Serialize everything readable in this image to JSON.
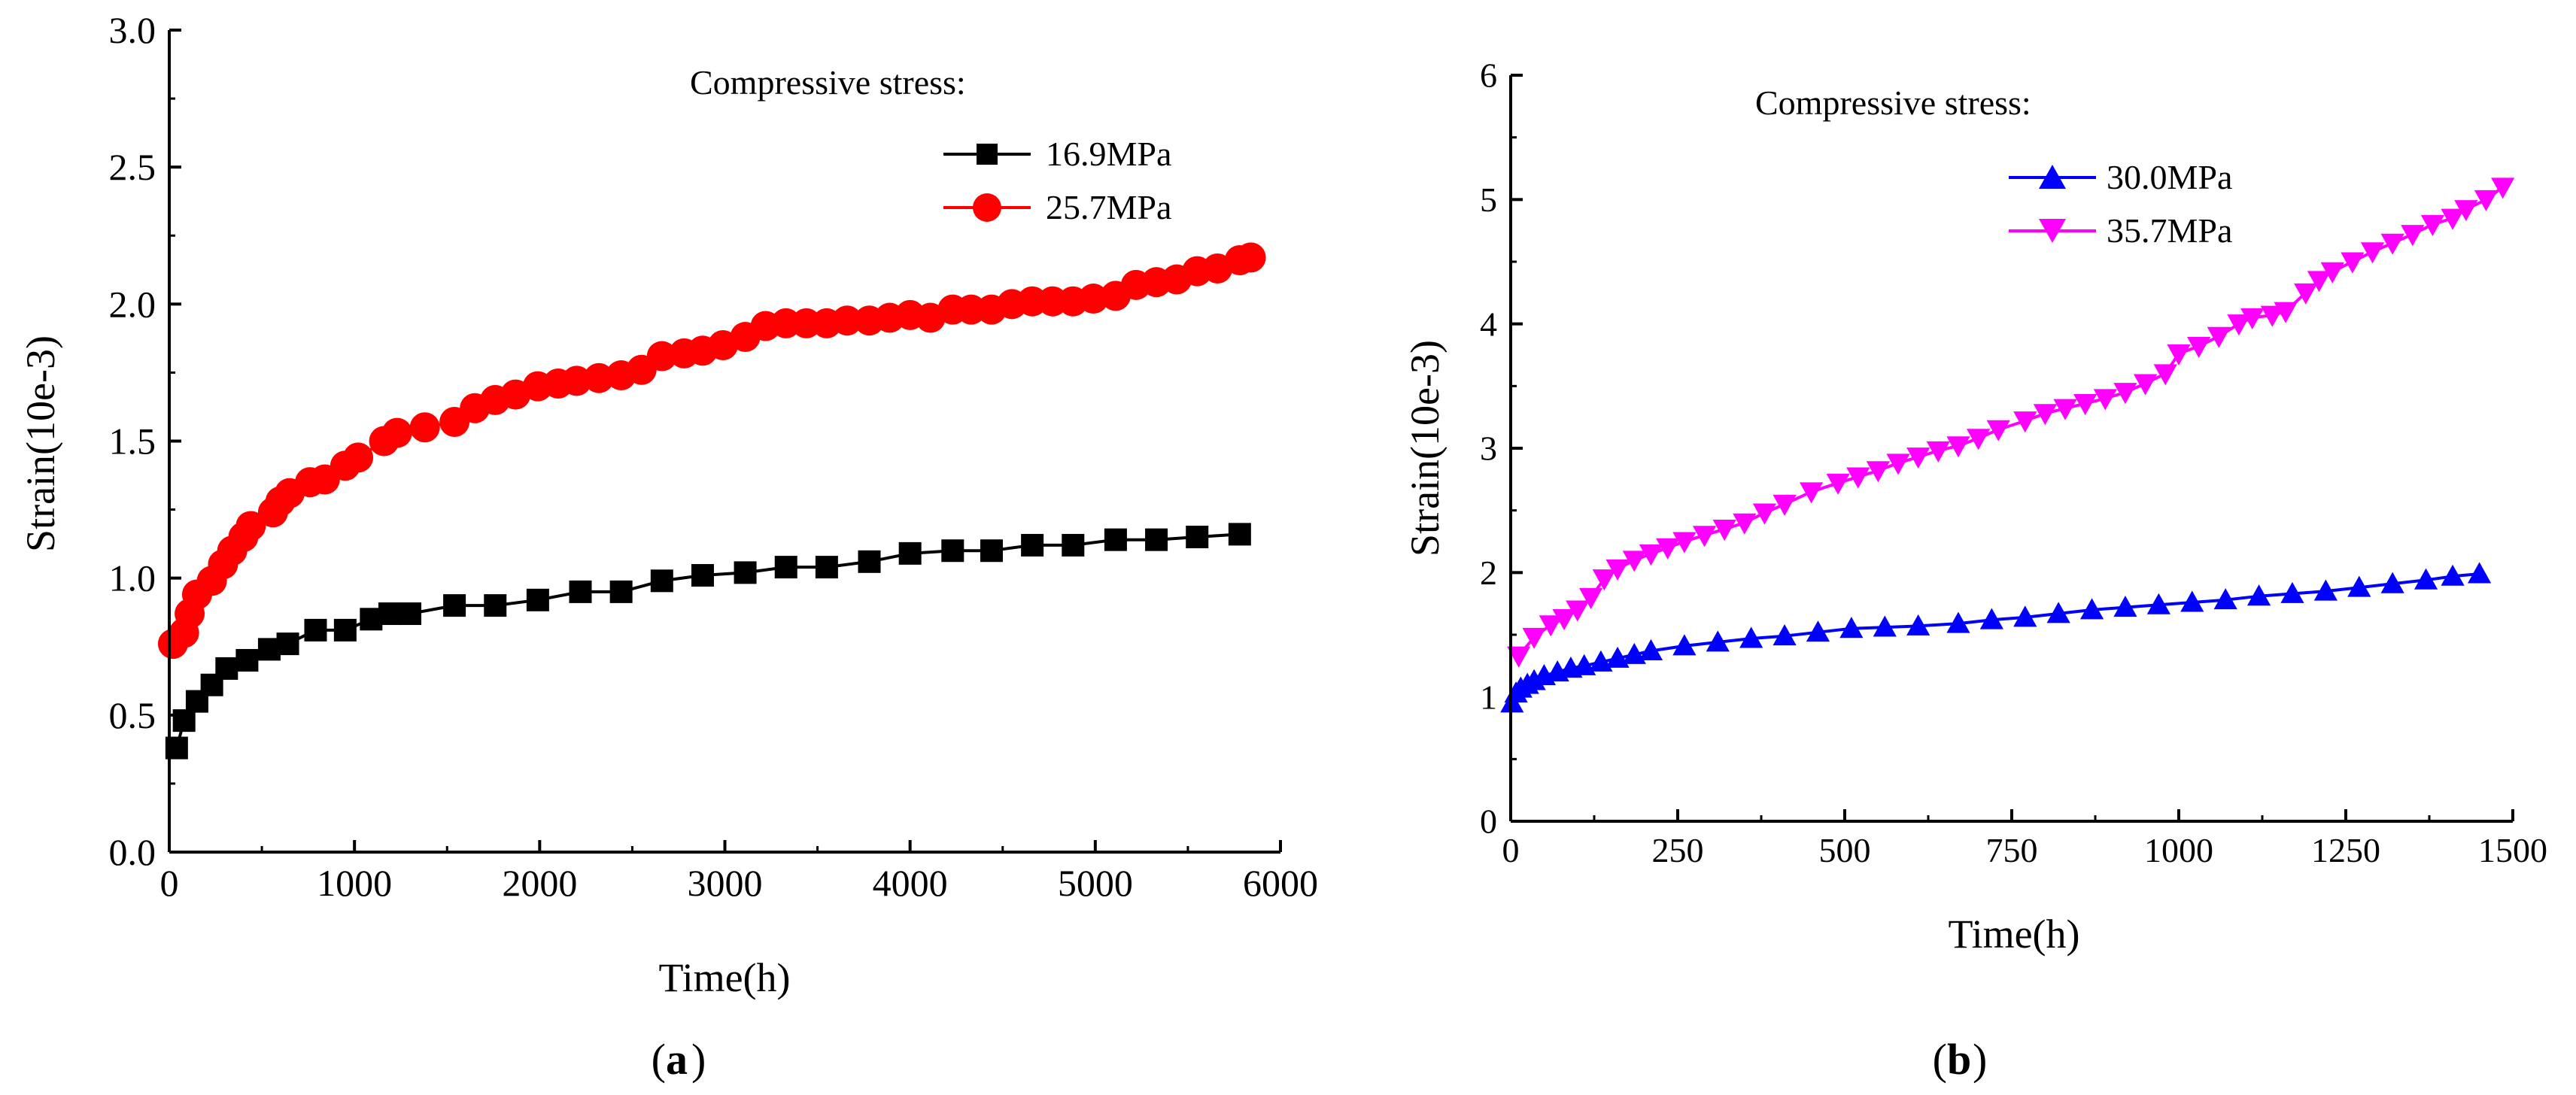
{
  "chart_data": [
    {
      "type": "line",
      "panel_label": "a",
      "title": "",
      "xlabel": "Time(h)",
      "ylabel": "Strain(10e-3)",
      "xlim": [
        0,
        6000
      ],
      "ylim": [
        0,
        3.0
      ],
      "xticks": [
        "0",
        "1000",
        "2000",
        "3000",
        "4000",
        "5000",
        "6000"
      ],
      "yticks": [
        "0.0",
        "0.5",
        "1.0",
        "1.5",
        "2.0",
        "2.5",
        "3.0"
      ],
      "legend_title": "Compressive stress:",
      "legend_position": "top-right",
      "grid": false,
      "series": [
        {
          "name": "16.9MPa",
          "color": "#000000",
          "marker": "square",
          "x": [
            40,
            80,
            150,
            230,
            310,
            420,
            540,
            640,
            790,
            950,
            1090,
            1190,
            1300,
            1540,
            1760,
            1990,
            2220,
            2440,
            2660,
            2880,
            3110,
            3330,
            3550,
            3780,
            4000,
            4230,
            4440,
            4660,
            4880,
            5110,
            5330,
            5550,
            5780
          ],
          "values": [
            0.38,
            0.48,
            0.55,
            0.61,
            0.67,
            0.7,
            0.74,
            0.76,
            0.81,
            0.81,
            0.85,
            0.87,
            0.87,
            0.9,
            0.9,
            0.92,
            0.95,
            0.95,
            0.99,
            1.01,
            1.02,
            1.04,
            1.04,
            1.06,
            1.09,
            1.1,
            1.1,
            1.12,
            1.12,
            1.14,
            1.14,
            1.15,
            1.16
          ]
        },
        {
          "name": "25.7MPa",
          "color": "#ff0000",
          "marker": "circle",
          "x": [
            20,
            80,
            110,
            150,
            230,
            290,
            340,
            400,
            440,
            560,
            600,
            650,
            760,
            840,
            950,
            1020,
            1160,
            1230,
            1380,
            1540,
            1650,
            1760,
            1870,
            1990,
            2100,
            2200,
            2320,
            2440,
            2550,
            2660,
            2780,
            2880,
            2990,
            3110,
            3220,
            3330,
            3440,
            3550,
            3660,
            3780,
            3890,
            4000,
            4110,
            4230,
            4330,
            4440,
            4550,
            4660,
            4770,
            4880,
            4990,
            5110,
            5220,
            5330,
            5440,
            5550,
            5660,
            5780,
            5840
          ],
          "values": [
            0.76,
            0.8,
            0.87,
            0.94,
            0.99,
            1.05,
            1.1,
            1.15,
            1.19,
            1.24,
            1.28,
            1.31,
            1.35,
            1.36,
            1.41,
            1.44,
            1.5,
            1.53,
            1.55,
            1.57,
            1.62,
            1.65,
            1.67,
            1.7,
            1.71,
            1.72,
            1.73,
            1.74,
            1.76,
            1.81,
            1.82,
            1.83,
            1.85,
            1.88,
            1.92,
            1.93,
            1.93,
            1.93,
            1.94,
            1.94,
            1.95,
            1.96,
            1.95,
            1.98,
            1.98,
            1.98,
            2.0,
            2.01,
            2.01,
            2.01,
            2.02,
            2.03,
            2.07,
            2.08,
            2.09,
            2.12,
            2.13,
            2.16,
            2.17
          ]
        }
      ]
    },
    {
      "type": "line",
      "panel_label": "b",
      "title": "",
      "xlabel": "Time(h)",
      "ylabel": "Strain(10e-3)",
      "xlim": [
        0,
        1500
      ],
      "ylim": [
        0,
        6
      ],
      "xticks": [
        "0",
        "250",
        "500",
        "750",
        "1000",
        "1250",
        "1500"
      ],
      "yticks": [
        "0",
        "1",
        "2",
        "3",
        "4",
        "5",
        "6"
      ],
      "legend_title": "Compressive stress:",
      "legend_position": "top-right",
      "grid": false,
      "series": [
        {
          "name": "30.0MPa",
          "color": "#0000ff",
          "marker": "triangle-up",
          "x": [
            2,
            8,
            15,
            25,
            35,
            50,
            70,
            90,
            110,
            135,
            160,
            185,
            210,
            260,
            310,
            360,
            410,
            460,
            510,
            560,
            610,
            670,
            720,
            770,
            820,
            870,
            920,
            970,
            1020,
            1070,
            1120,
            1170,
            1220,
            1270,
            1320,
            1370,
            1410,
            1450
          ],
          "values": [
            0.95,
            1.03,
            1.07,
            1.1,
            1.13,
            1.17,
            1.2,
            1.23,
            1.25,
            1.28,
            1.31,
            1.34,
            1.37,
            1.41,
            1.44,
            1.47,
            1.49,
            1.52,
            1.55,
            1.56,
            1.57,
            1.59,
            1.62,
            1.64,
            1.67,
            1.7,
            1.72,
            1.74,
            1.76,
            1.78,
            1.81,
            1.83,
            1.85,
            1.88,
            1.91,
            1.94,
            1.97,
            1.99
          ]
        },
        {
          "name": "35.7MPa",
          "color": "#ff00ff",
          "marker": "triangle-down",
          "x": [
            12,
            35,
            60,
            80,
            100,
            120,
            140,
            160,
            185,
            210,
            235,
            260,
            290,
            320,
            350,
            380,
            410,
            450,
            490,
            520,
            550,
            580,
            610,
            640,
            670,
            700,
            730,
            770,
            800,
            830,
            860,
            890,
            920,
            950,
            980,
            1000,
            1030,
            1060,
            1090,
            1110,
            1140,
            1160,
            1190,
            1210,
            1230,
            1260,
            1290,
            1320,
            1350,
            1380,
            1410,
            1430,
            1460,
            1485
          ],
          "values": [
            1.33,
            1.48,
            1.58,
            1.63,
            1.7,
            1.8,
            1.95,
            2.03,
            2.1,
            2.15,
            2.2,
            2.25,
            2.3,
            2.35,
            2.4,
            2.48,
            2.55,
            2.65,
            2.72,
            2.77,
            2.82,
            2.88,
            2.93,
            2.98,
            3.02,
            3.08,
            3.15,
            3.22,
            3.28,
            3.32,
            3.36,
            3.4,
            3.45,
            3.52,
            3.6,
            3.76,
            3.82,
            3.9,
            4.0,
            4.05,
            4.07,
            4.1,
            4.25,
            4.35,
            4.42,
            4.5,
            4.58,
            4.65,
            4.72,
            4.8,
            4.85,
            4.92,
            5.0,
            5.1
          ]
        }
      ]
    }
  ]
}
